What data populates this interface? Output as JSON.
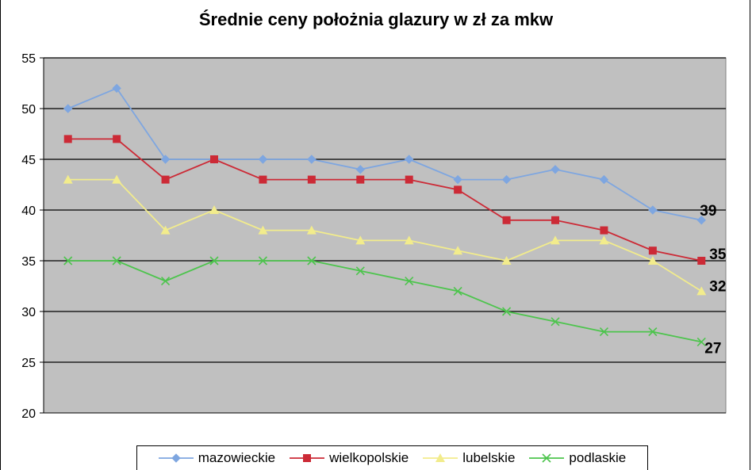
{
  "chart_data": {
    "type": "line",
    "title": "Średnie ceny położnia glazury w zł za mkw",
    "xlabel": "",
    "ylabel": "",
    "ylim": [
      20,
      55
    ],
    "yticks": [
      "20",
      "25",
      "30",
      "35",
      "40",
      "45",
      "50",
      "55"
    ],
    "grid": true,
    "legend_position": "bottom",
    "background": "#c0c0c0",
    "series": [
      {
        "name": "mazowieckie",
        "color": "#7ea6e0",
        "marker": "diamond",
        "values": [
          50,
          52,
          45,
          45,
          45,
          45,
          44,
          45,
          43,
          43,
          44,
          43,
          40,
          39
        ],
        "end_label": "39"
      },
      {
        "name": "wielkopolskie",
        "color": "#cc2a36",
        "marker": "square",
        "values": [
          47,
          47,
          43,
          45,
          43,
          43,
          43,
          43,
          42,
          39,
          39,
          38,
          36,
          35
        ],
        "end_label": "35"
      },
      {
        "name": "lubelskie",
        "color": "#f2ec8c",
        "marker": "triangle",
        "values": [
          43,
          43,
          38,
          40,
          38,
          38,
          37,
          37,
          36,
          35,
          37,
          37,
          35,
          32
        ],
        "end_label": "32"
      },
      {
        "name": "podlaskie",
        "color": "#4dc44d",
        "marker": "x",
        "values": [
          35,
          35,
          33,
          35,
          35,
          35,
          34,
          33,
          32,
          30,
          29,
          28,
          28,
          27
        ],
        "end_label": "27"
      }
    ]
  }
}
